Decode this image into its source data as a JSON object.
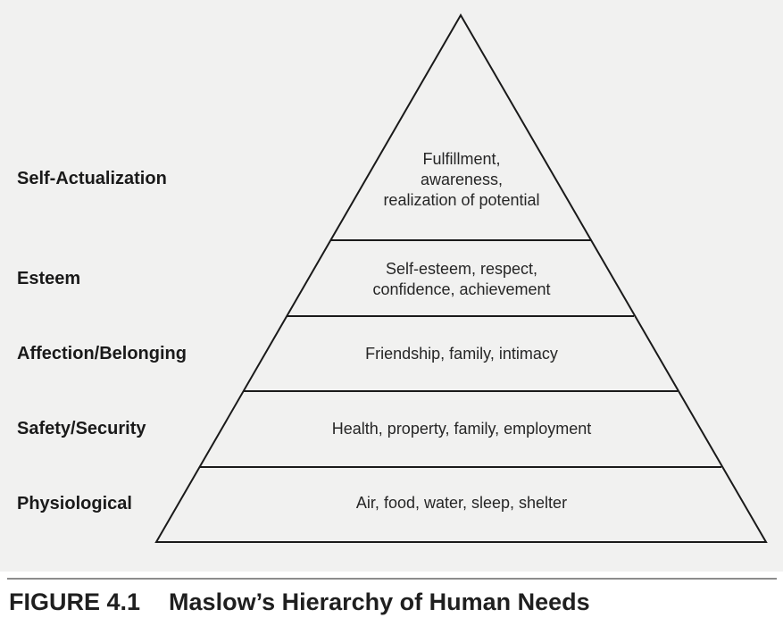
{
  "diagram": {
    "tiers": [
      {
        "label": "Self-Actualization",
        "description": "Fulfillment,\nawareness,\nrealization of potential"
      },
      {
        "label": "Esteem",
        "description": "Self-esteem, respect,\nconfidence, achievement"
      },
      {
        "label": "Affection/Belonging",
        "description": "Friendship, family, intimacy"
      },
      {
        "label": "Safety/Security",
        "description": "Health, property, family, employment"
      },
      {
        "label": "Physiological",
        "description": "Air, food, water, sleep, shelter"
      }
    ]
  },
  "caption": {
    "number": "FIGURE 4.1",
    "title": "Maslow’s Hierarchy of Human Needs"
  }
}
